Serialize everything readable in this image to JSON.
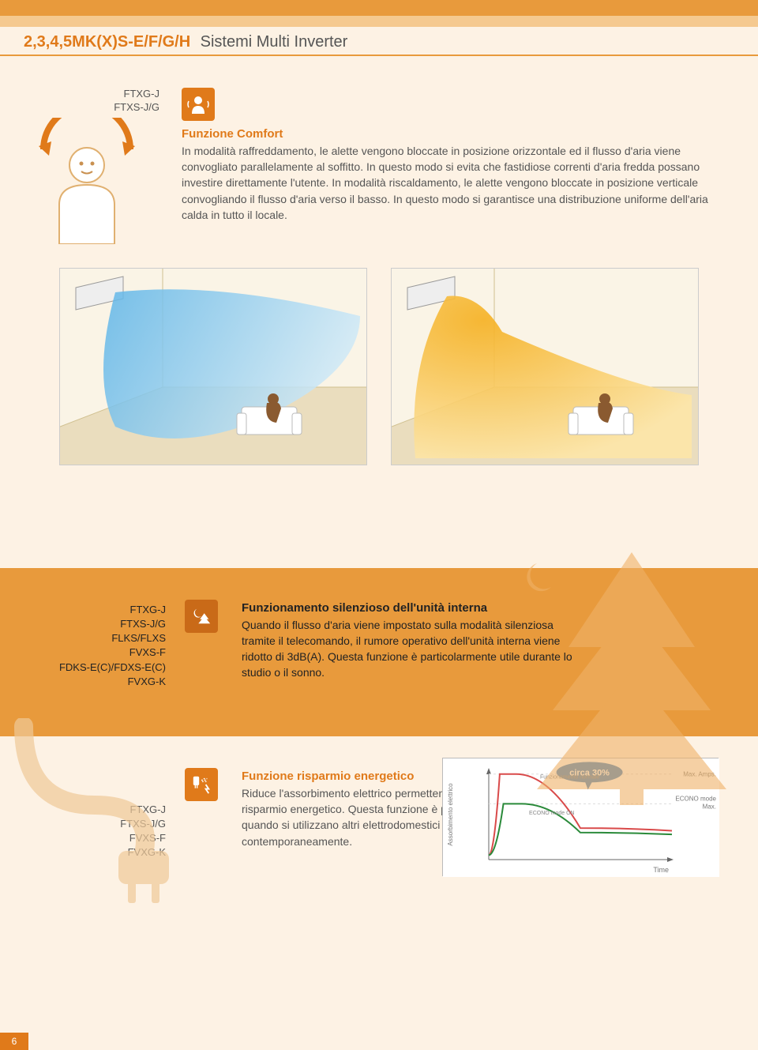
{
  "header": {
    "model_code": "2,3,4,5MK(X)S-E/F/G/H",
    "name": "Sistemi Multi Inverter"
  },
  "section1": {
    "models": [
      "FTXG-J",
      "FTXS-J/G"
    ],
    "title": "Funzione Comfort",
    "body": "In modalità raffreddamento, le alette vengono bloccate in posizione orizzontale ed il flusso d'aria viene convogliato parallelamente al soffitto. In questo modo si evita che fastidiose correnti d'aria fredda possano investire direttamente l'utente. In modalità riscaldamento, le alette vengono bloccate in posizione verticale convogliando il flusso d'aria verso il basso. In questo modo si garantisce una distribuzione uniforme dell'aria calda in tutto il locale.",
    "comfort_icon": {
      "arc_color": "#e07a1a",
      "body_color": "#ffffff",
      "body_outline": "#e0b070"
    },
    "feature_icon_bg": "#e07a1a",
    "rooms": {
      "cool": {
        "air_color_start": "#5eb5e8",
        "air_color_end": "#cfe9f7",
        "wall_color": "#f4e9d5",
        "floor_color": "#e8d9b8"
      },
      "heat": {
        "air_color_start": "#f5b020",
        "air_color_end": "#fde6a8",
        "wall_color": "#f4e9d5",
        "floor_color": "#e8d9b8"
      }
    }
  },
  "section2": {
    "models": [
      "FTXG-J",
      "FTXS-J/G",
      "FLKS/FLXS",
      "FVXS-F",
      "FDKS-E(C)/FDXS-E(C)",
      "FVXG-K"
    ],
    "title": "Funzionamento silenzioso dell'unità interna",
    "body": "Quando il flusso d'aria viene impostato sulla modalità silenziosa  tramite il telecomando, il rumore operativo dell'unità interna viene ridotto di 3dB(A). Questa funzione è particolarmente utile durante lo studio o il sonno.",
    "bg_color": "#e89a3c",
    "icon_bg": "#c96a18",
    "tree_color": "#f0b268"
  },
  "section3": {
    "models": [
      "FTXG-J",
      "FTXS-J/G",
      "FVXS-F",
      "FVXG-K"
    ],
    "title": "Funzione risparmio energetico",
    "body": "Riduce l'assorbimento elettrico permettendo un elevato risparmio energetico. Questa funzione è particolarmente utile quando si utilizzano altri elettrodomestici contemporaneamente.",
    "icon_bg": "#e07a1a",
    "plug_color": "#f0c998",
    "chart": {
      "background": "#ffffff",
      "axis_color": "#666666",
      "grid_color": "#dddddd",
      "normal_line_color": "#d94a4a",
      "econo_line_color": "#2a8a3a",
      "bubble_bg": "#3a7fc4",
      "bubble_text": "circa 30%",
      "x_label": "Time",
      "y_label": "Assorbimento elettrico",
      "right_labels": [
        "Max. Amps.",
        "ECONO mode Max."
      ],
      "series_labels": [
        "Funzionamento normale",
        "ECONO mode ON"
      ],
      "normal_curve": [
        [
          0,
          0.05
        ],
        [
          0.06,
          0.95
        ],
        [
          0.15,
          0.95
        ],
        [
          0.5,
          0.35
        ],
        [
          1,
          0.32
        ]
      ],
      "econo_curve": [
        [
          0,
          0.05
        ],
        [
          0.08,
          0.62
        ],
        [
          0.18,
          0.62
        ],
        [
          0.5,
          0.3
        ],
        [
          1,
          0.28
        ]
      ],
      "xlim": [
        0,
        1
      ],
      "ylim": [
        0,
        1
      ]
    }
  },
  "page_number": "6"
}
